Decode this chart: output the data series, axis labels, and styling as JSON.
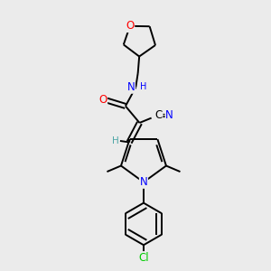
{
  "background_color": "#ebebeb",
  "bond_color": "#000000",
  "atom_colors": {
    "N": "#0000ff",
    "O": "#ff0000",
    "Cl": "#00cc00",
    "H_vinyl": "#4da6a6",
    "C": "#000000"
  },
  "title": "",
  "figsize": [
    3.0,
    3.0
  ],
  "dpi": 100
}
